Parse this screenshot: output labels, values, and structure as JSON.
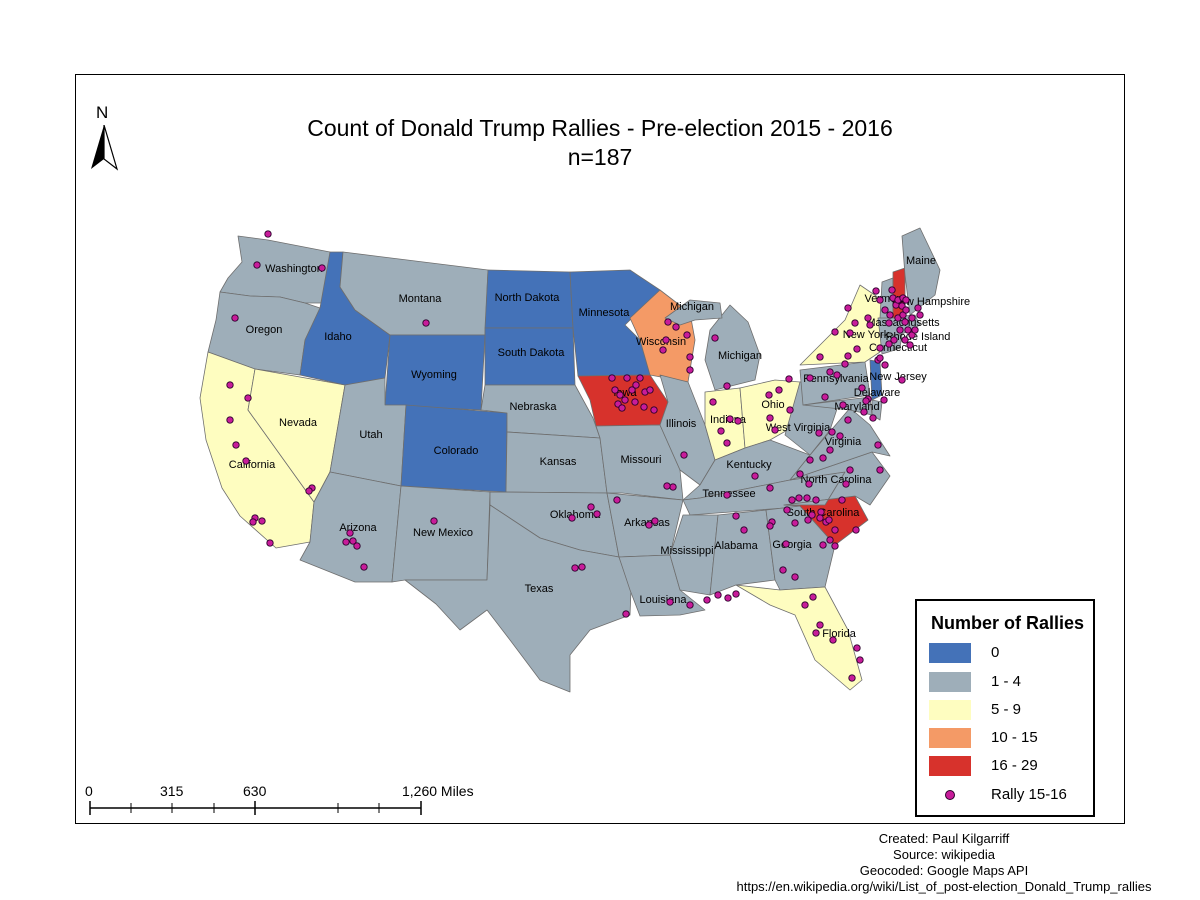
{
  "title": {
    "line1": "Count of Donald Trump Rallies - Pre-election 2015 - 2016",
    "line2": "n=187"
  },
  "north_arrow": {
    "label": "N",
    "icon": "north-arrow-icon"
  },
  "legend": {
    "title": "Number of Rallies",
    "classes": [
      {
        "label": "0",
        "color": "#4472b8"
      },
      {
        "label": "1 - 4",
        "color": "#9eaeb9"
      },
      {
        "label": "5 - 9",
        "color": "#fefdc0"
      },
      {
        "label": "10 - 15",
        "color": "#f49a66"
      },
      {
        "label": "16 - 29",
        "color": "#d7322c"
      }
    ],
    "point_label": "Rally 15-16",
    "point_color": "#c81c9a"
  },
  "scale_bar": {
    "ticks": [
      "0",
      "315",
      "630",
      "1,260 Miles"
    ]
  },
  "credits": [
    "Created: Paul Kilgarriff",
    "Source: wikipedia",
    "Geocoded: Google Maps API",
    "https://en.wikipedia.org/wiki/List_of_post-election_Donald_Trump_rallies"
  ],
  "states": [
    {
      "id": "wa",
      "name": "Washington",
      "cls": 1
    },
    {
      "id": "or",
      "name": "Oregon",
      "cls": 1
    },
    {
      "id": "ca",
      "name": "California",
      "cls": 2
    },
    {
      "id": "nv",
      "name": "Nevada",
      "cls": 2
    },
    {
      "id": "id",
      "name": "Idaho",
      "cls": 0
    },
    {
      "id": "mt",
      "name": "Montana",
      "cls": 1
    },
    {
      "id": "wy",
      "name": "Wyoming",
      "cls": 0
    },
    {
      "id": "ut",
      "name": "Utah",
      "cls": 1
    },
    {
      "id": "az",
      "name": "Arizona",
      "cls": 1
    },
    {
      "id": "co",
      "name": "Colorado",
      "cls": 0
    },
    {
      "id": "nm",
      "name": "New Mexico",
      "cls": 1
    },
    {
      "id": "nd",
      "name": "North Dakota",
      "cls": 0
    },
    {
      "id": "sd",
      "name": "South Dakota",
      "cls": 0
    },
    {
      "id": "ne",
      "name": "Nebraska",
      "cls": 1
    },
    {
      "id": "ks",
      "name": "Kansas",
      "cls": 1
    },
    {
      "id": "ok",
      "name": "Oklahoma",
      "cls": 1
    },
    {
      "id": "tx",
      "name": "Texas",
      "cls": 1
    },
    {
      "id": "mn",
      "name": "Minnesota",
      "cls": 0
    },
    {
      "id": "ia",
      "name": "Iowa",
      "cls": 4
    },
    {
      "id": "mo",
      "name": "Missouri",
      "cls": 1
    },
    {
      "id": "ar",
      "name": "Arkansas",
      "cls": 1
    },
    {
      "id": "la",
      "name": "Louisiana",
      "cls": 1
    },
    {
      "id": "wi",
      "name": "Wisconsin",
      "cls": 3
    },
    {
      "id": "il",
      "name": "Illinois",
      "cls": 1
    },
    {
      "id": "mi",
      "name": "Michigan",
      "cls": 1
    },
    {
      "id": "in",
      "name": "Indiana",
      "cls": 2
    },
    {
      "id": "oh",
      "name": "Ohio",
      "cls": 2
    },
    {
      "id": "ky",
      "name": "Kentucky",
      "cls": 1
    },
    {
      "id": "tn",
      "name": "Tennessee",
      "cls": 1
    },
    {
      "id": "ms",
      "name": "Mississippi",
      "cls": 1
    },
    {
      "id": "al",
      "name": "Alabama",
      "cls": 1
    },
    {
      "id": "ga",
      "name": "Georgia",
      "cls": 1
    },
    {
      "id": "fl",
      "name": "Florida",
      "cls": 2
    },
    {
      "id": "sc",
      "name": "South Carolina",
      "cls": 4
    },
    {
      "id": "nc",
      "name": "North Carolina",
      "cls": 1
    },
    {
      "id": "va",
      "name": "Virginia",
      "cls": 1
    },
    {
      "id": "wv",
      "name": "West Virginia",
      "cls": 1
    },
    {
      "id": "pa",
      "name": "Pennsylvania",
      "cls": 1
    },
    {
      "id": "ny",
      "name": "New York",
      "cls": 2
    },
    {
      "id": "nj",
      "name": "New Jersey",
      "cls": 0
    },
    {
      "id": "de",
      "name": "Delaware",
      "cls": 1
    },
    {
      "id": "md",
      "name": "Maryland",
      "cls": 1
    },
    {
      "id": "ct",
      "name": "Connecticut",
      "cls": 1
    },
    {
      "id": "ri",
      "name": "Rhode Island",
      "cls": 1
    },
    {
      "id": "ma",
      "name": "Massachusetts",
      "cls": 1
    },
    {
      "id": "vt",
      "name": "Vermont",
      "cls": 1
    },
    {
      "id": "nh",
      "name": "New Hampshire",
      "cls": 4
    },
    {
      "id": "me",
      "name": "Maine",
      "cls": 1
    }
  ],
  "extra_labels": [
    {
      "id": "mi-up",
      "text": "Michigan"
    }
  ]
}
